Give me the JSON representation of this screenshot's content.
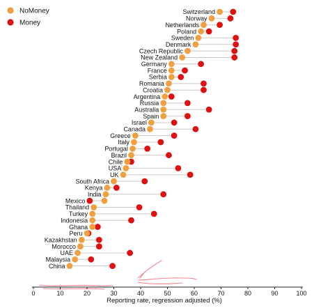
{
  "chart_data": {
    "type": "scatter",
    "xlabel": "Reporting rate, regression adjusted (%)",
    "ylabel": "",
    "xlim": [
      0,
      100
    ],
    "xticks": [
      0,
      10,
      20,
      30,
      40,
      50,
      60,
      70,
      80,
      90,
      100
    ],
    "grid": false,
    "legend_position": "top-left",
    "colors": {
      "NoMoney": "#f0a040",
      "Money": "#dd1111",
      "connector": "#c8c8c8",
      "annotation": "#ee6f7a"
    },
    "series": [
      {
        "name": "NoMoney",
        "key": "nomoney"
      },
      {
        "name": "Money",
        "key": "money"
      }
    ],
    "countries": [
      {
        "name": "Switzerland",
        "nomoney": 69.5,
        "money": 74.5
      },
      {
        "name": "Norway",
        "nomoney": 66.5,
        "money": 73.5
      },
      {
        "name": "Netherlands",
        "nomoney": 63.5,
        "money": 69.5
      },
      {
        "name": "Poland",
        "nomoney": 62.5,
        "money": 65.5
      },
      {
        "name": "Sweden",
        "nomoney": 61.5,
        "money": 75.5
      },
      {
        "name": "Denmark",
        "nomoney": 60.5,
        "money": 75.5
      },
      {
        "name": "Czech Republic",
        "nomoney": 57.5,
        "money": 75.0
      },
      {
        "name": "New Zealand",
        "nomoney": 55.5,
        "money": 75.0
      },
      {
        "name": "Germany",
        "nomoney": 51.5,
        "money": 62.5
      },
      {
        "name": "France",
        "nomoney": 51.5,
        "money": 56.5
      },
      {
        "name": "Serbia",
        "nomoney": 51.5,
        "money": 55.0
      },
      {
        "name": "Romania",
        "nomoney": 50.5,
        "money": 63.5
      },
      {
        "name": "Croatia",
        "nomoney": 50.0,
        "money": 63.5
      },
      {
        "name": "Argentina",
        "nomoney": 49.0,
        "money": 51.5
      },
      {
        "name": "Russia",
        "nomoney": 48.5,
        "money": 57.5
      },
      {
        "name": "Australia",
        "nomoney": 48.5,
        "money": 65.5
      },
      {
        "name": "Spain",
        "nomoney": 48.5,
        "money": 57.5
      },
      {
        "name": "Israel",
        "nomoney": 44.0,
        "money": 52.5
      },
      {
        "name": "Canada",
        "nomoney": 43.5,
        "money": 60.5
      },
      {
        "name": "Greece",
        "nomoney": 38.0,
        "money": 52.5
      },
      {
        "name": "Italy",
        "nomoney": 37.5,
        "money": 47.5
      },
      {
        "name": "Portugal",
        "nomoney": 37.0,
        "money": 42.5
      },
      {
        "name": "Brazil",
        "nomoney": 36.5,
        "money": 50.5
      },
      {
        "name": "Chile",
        "nomoney": 35.0,
        "money": 36.5
      },
      {
        "name": "USA",
        "nomoney": 34.5,
        "money": 54.0
      },
      {
        "name": "UK",
        "nomoney": 33.5,
        "money": 58.5
      },
      {
        "name": "South Africa",
        "nomoney": 30.0,
        "money": 41.5
      },
      {
        "name": "Kenya",
        "nomoney": 27.5,
        "money": 31.0
      },
      {
        "name": "India",
        "nomoney": 27.0,
        "money": 48.5
      },
      {
        "name": "Mexico",
        "nomoney": 26.5,
        "money": 21.0
      },
      {
        "name": "Thailand",
        "nomoney": 22.5,
        "money": 39.5
      },
      {
        "name": "Turkey",
        "nomoney": 22.0,
        "money": 45.0
      },
      {
        "name": "Indonesia",
        "nomoney": 22.0,
        "money": 36.5
      },
      {
        "name": "Ghana",
        "nomoney": 22.0,
        "money": 24.0
      },
      {
        "name": "Peru",
        "nomoney": 20.0,
        "money": 20.5
      },
      {
        "name": "Kazakhstan",
        "nomoney": 18.0,
        "money": 24.5
      },
      {
        "name": "Morocco",
        "nomoney": 17.5,
        "money": 24.5
      },
      {
        "name": "UAE",
        "nomoney": 16.5,
        "money": 36.0
      },
      {
        "name": "Malaysia",
        "nomoney": 15.5,
        "money": 21.5
      },
      {
        "name": "China",
        "nomoney": 13.5,
        "money": 29.5
      }
    ]
  }
}
